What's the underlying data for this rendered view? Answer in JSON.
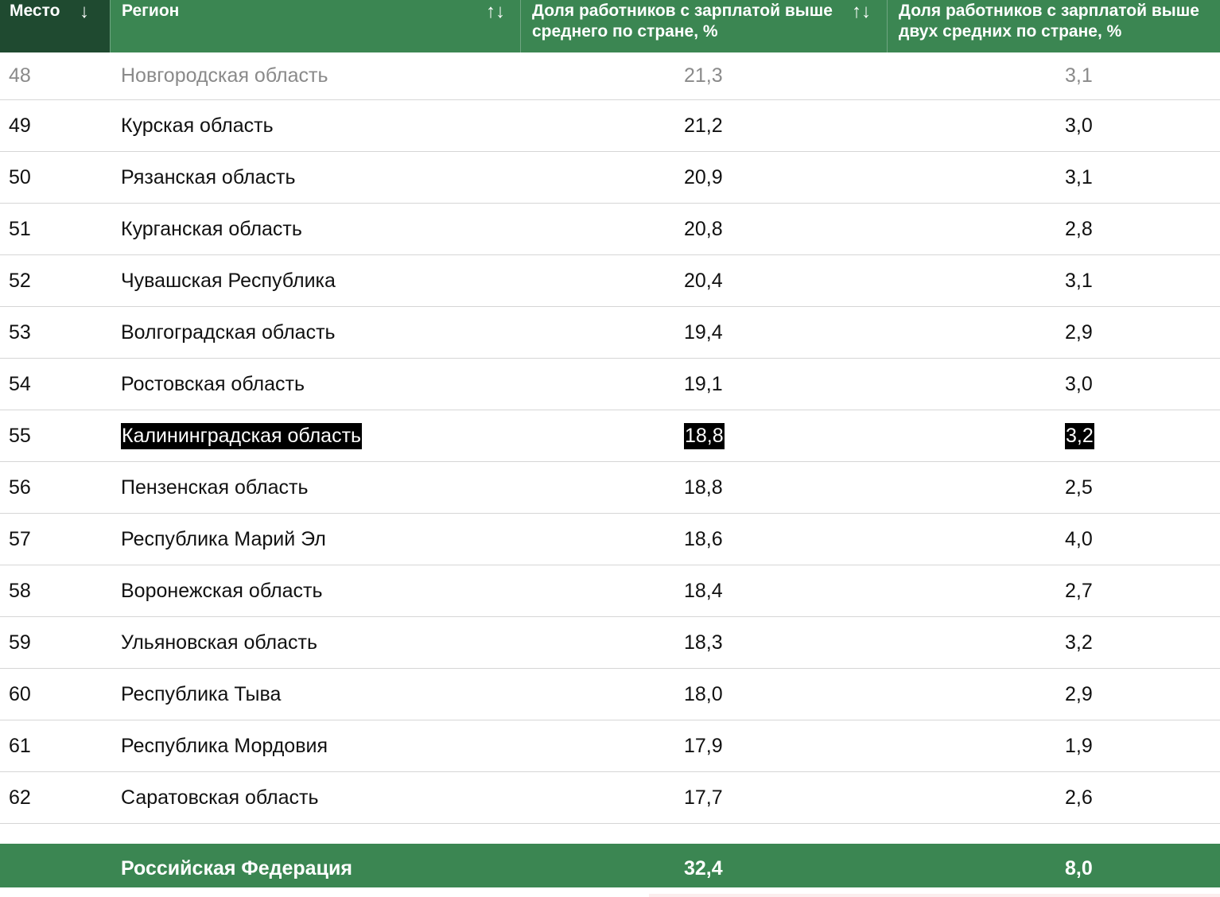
{
  "header": {
    "rank_label": "Место",
    "rank_sort_icon": "↓",
    "region_label": "Регион",
    "region_sort_icon": "↑↓",
    "share_above_avg_label": "Доля работников с зарплатой выше среднего по стране, %",
    "share_above_avg_sort_icon": "↑↓",
    "share_above_double_label": "Доля работников с зарплатой выше двух средних по стране, %"
  },
  "columns": [
    "Место",
    "Регион",
    "Доля работников с зарплатой выше среднего по стране, %",
    "Доля работников с зарплатой выше двух средних по стране, %"
  ],
  "rows": [
    {
      "rank": "48",
      "region": "Новгородская область",
      "above_avg": "21,3",
      "above_double": "3,1"
    },
    {
      "rank": "49",
      "region": "Курская область",
      "above_avg": "21,2",
      "above_double": "3,0"
    },
    {
      "rank": "50",
      "region": "Рязанская область",
      "above_avg": "20,9",
      "above_double": "3,1"
    },
    {
      "rank": "51",
      "region": "Курганская область",
      "above_avg": "20,8",
      "above_double": "2,8"
    },
    {
      "rank": "52",
      "region": "Чувашская Республика",
      "above_avg": "20,4",
      "above_double": "3,1"
    },
    {
      "rank": "53",
      "region": "Волгоградская область",
      "above_avg": "19,4",
      "above_double": "2,9"
    },
    {
      "rank": "54",
      "region": "Ростовская область",
      "above_avg": "19,1",
      "above_double": "3,0"
    },
    {
      "rank": "55",
      "region": "Калининградская область",
      "above_avg": "18,8",
      "above_double": "3,2"
    },
    {
      "rank": "56",
      "region": "Пензенская область",
      "above_avg": "18,8",
      "above_double": "2,5"
    },
    {
      "rank": "57",
      "region": "Республика Марий Эл",
      "above_avg": "18,6",
      "above_double": "4,0"
    },
    {
      "rank": "58",
      "region": "Воронежская область",
      "above_avg": "18,4",
      "above_double": "2,7"
    },
    {
      "rank": "59",
      "region": "Ульяновская область",
      "above_avg": "18,3",
      "above_double": "3,2"
    },
    {
      "rank": "60",
      "region": "Республика Тыва",
      "above_avg": "18,0",
      "above_double": "2,9"
    },
    {
      "rank": "61",
      "region": "Республика Мордовия",
      "above_avg": "17,9",
      "above_double": "1,9"
    },
    {
      "rank": "62",
      "region": "Саратовская область",
      "above_avg": "17,7",
      "above_double": "2,6"
    }
  ],
  "highlighted_region": "Калининградская область",
  "total": {
    "region": "Российская Федерация",
    "above_avg": "32,4",
    "above_double": "8,0"
  },
  "colors": {
    "header_bg": "#3b8652",
    "rank_header_bg": "#1f4a30",
    "highlight_bg": "#000000",
    "total_bg": "#3b8652"
  }
}
